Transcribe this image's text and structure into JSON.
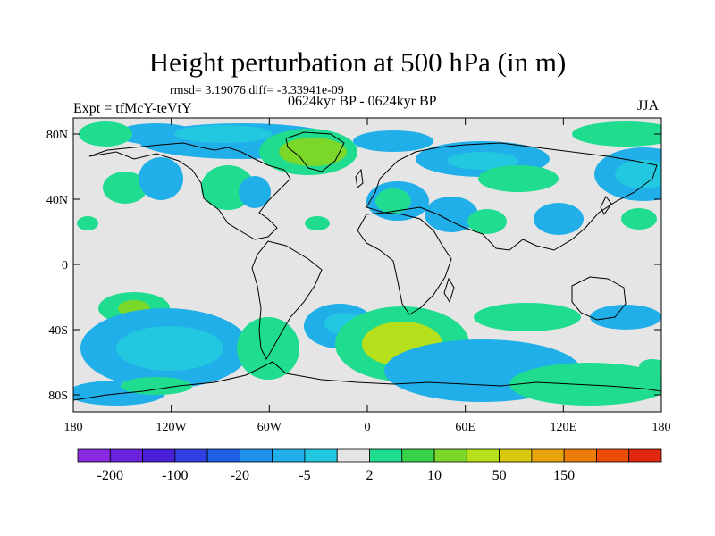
{
  "title": "Height perturbation at 500 hPa (in m)",
  "stats_line": "rmsd= 3.19076 diff= -3.33941e-09",
  "left_label": "Expt = tfMcY-teVtY",
  "center_label": "0624kyr BP - 0624kyr BP",
  "right_label": "JJA",
  "map": {
    "background_color": "#e5e5e5",
    "lat_ticks": [
      "80N",
      "40N",
      "0",
      "40S",
      "80S"
    ],
    "lon_ticks": [
      "180",
      "120W",
      "60W",
      "0",
      "60E",
      "120E",
      "180"
    ]
  },
  "colorbar": {
    "colors": [
      "#8a2be2",
      "#6a22dd",
      "#4a1fd8",
      "#2f3fe0",
      "#1e60e6",
      "#1f8fe8",
      "#20afe8",
      "#22c7e0",
      "#e5e5e5",
      "#1fdc8f",
      "#37d24a",
      "#7bd82a",
      "#b6e01c",
      "#d8c810",
      "#e8a40c",
      "#ec7c08",
      "#ec4c08",
      "#e02810"
    ],
    "labels": [
      "-200",
      "-100",
      "-20",
      "-5",
      "2",
      "10",
      "50",
      "150"
    ],
    "label_positions": [
      1,
      3,
      5,
      7,
      9,
      11,
      13,
      15
    ]
  }
}
